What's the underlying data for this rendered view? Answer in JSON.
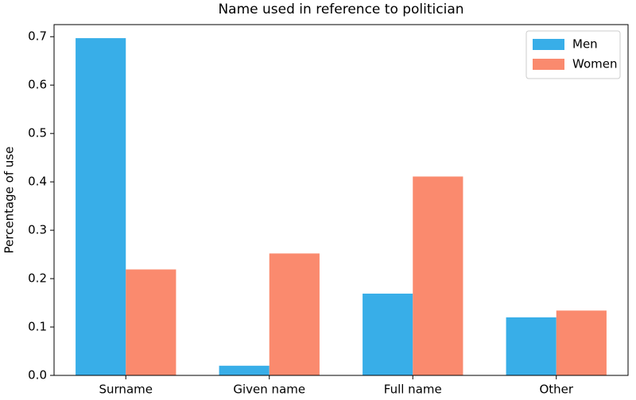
{
  "chart_data": {
    "type": "bar",
    "title": "Name used in reference to politician",
    "y_label": "Percentage of use",
    "categories": [
      "Surname",
      "Given name",
      "Full name",
      "Other"
    ],
    "series": [
      {
        "name": "Men",
        "color": "#38aee8",
        "values": [
          0.697,
          0.02,
          0.169,
          0.12
        ]
      },
      {
        "name": "Women",
        "color": "#fa8a6e",
        "values": [
          0.219,
          0.252,
          0.411,
          0.134
        ]
      }
    ],
    "ylim": [
      0,
      0.725
    ],
    "yticks": [
      {
        "value": 0,
        "label": "0.0"
      },
      0.1,
      0.2,
      0.3,
      0.4,
      0.5,
      0.6,
      0.7
    ],
    "legend": "upper right"
  }
}
